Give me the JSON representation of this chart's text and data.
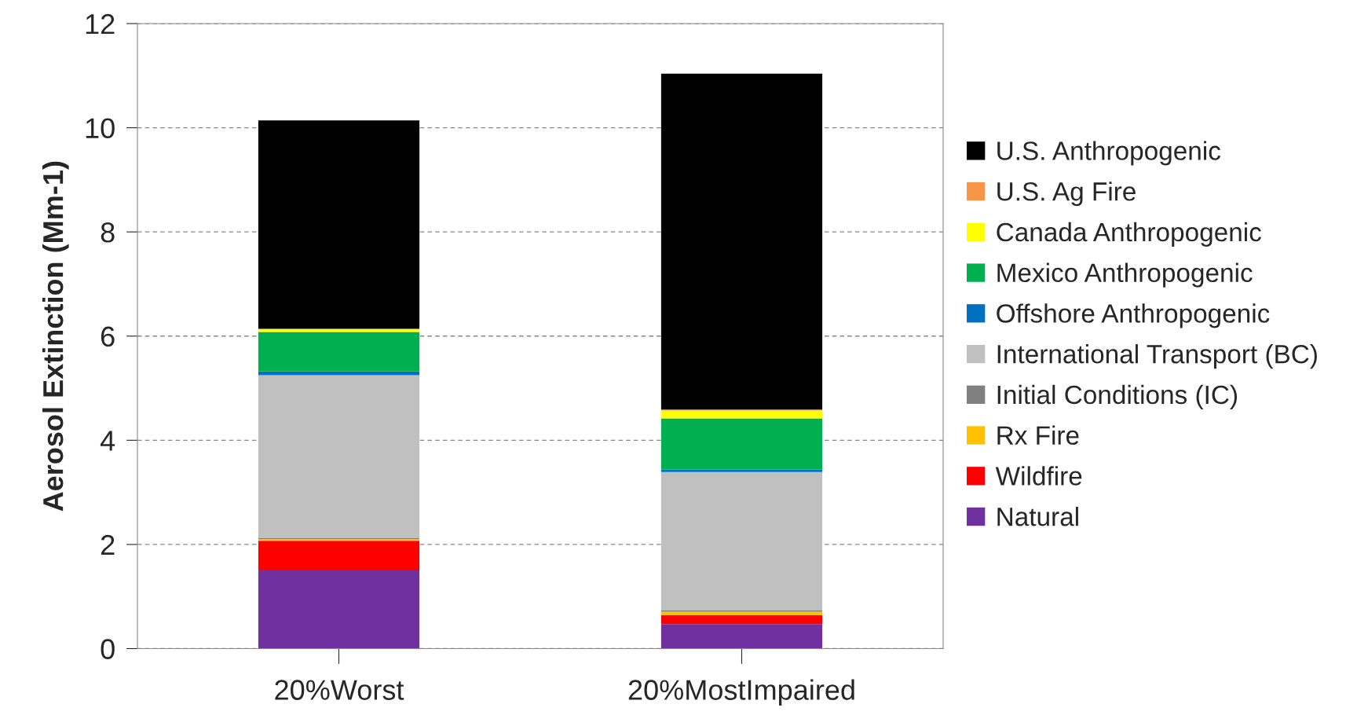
{
  "chart_data": {
    "type": "bar",
    "stacked": true,
    "categories": [
      "20%Worst",
      "20%MostImpaired"
    ],
    "ylabel": "Aerosol Extinction (Mm-1)",
    "ylim": [
      0,
      12
    ],
    "yticks": [
      0,
      2,
      4,
      6,
      8,
      10,
      12
    ],
    "grid": "y",
    "legend": "right",
    "series": [
      {
        "name": "Natural",
        "color": "#7030a0",
        "values": [
          1.5,
          0.47
        ]
      },
      {
        "name": "Wildfire",
        "color": "#ff0000",
        "values": [
          0.57,
          0.17
        ]
      },
      {
        "name": "Rx Fire",
        "color": "#ffc000",
        "values": [
          0.03,
          0.07
        ]
      },
      {
        "name": "Initial Conditions (IC)",
        "color": "#808080",
        "values": [
          0.02,
          0.03
        ]
      },
      {
        "name": "International Transport (BC)",
        "color": "#c0c0c0",
        "values": [
          3.13,
          2.65
        ]
      },
      {
        "name": "Offshore Anthropogenic",
        "color": "#0070c0",
        "values": [
          0.07,
          0.05
        ]
      },
      {
        "name": "Mexico Anthropogenic",
        "color": "#00b050",
        "values": [
          0.76,
          0.98
        ]
      },
      {
        "name": "Canada Anthropogenic",
        "color": "#ffff00",
        "values": [
          0.06,
          0.15
        ]
      },
      {
        "name": "U.S. Ag Fire",
        "color": "#f79646",
        "values": [
          null,
          0.02
        ]
      },
      {
        "name": "U.S. Anthropogenic",
        "color": "#000000",
        "values": [
          4.0,
          6.45
        ]
      }
    ]
  }
}
